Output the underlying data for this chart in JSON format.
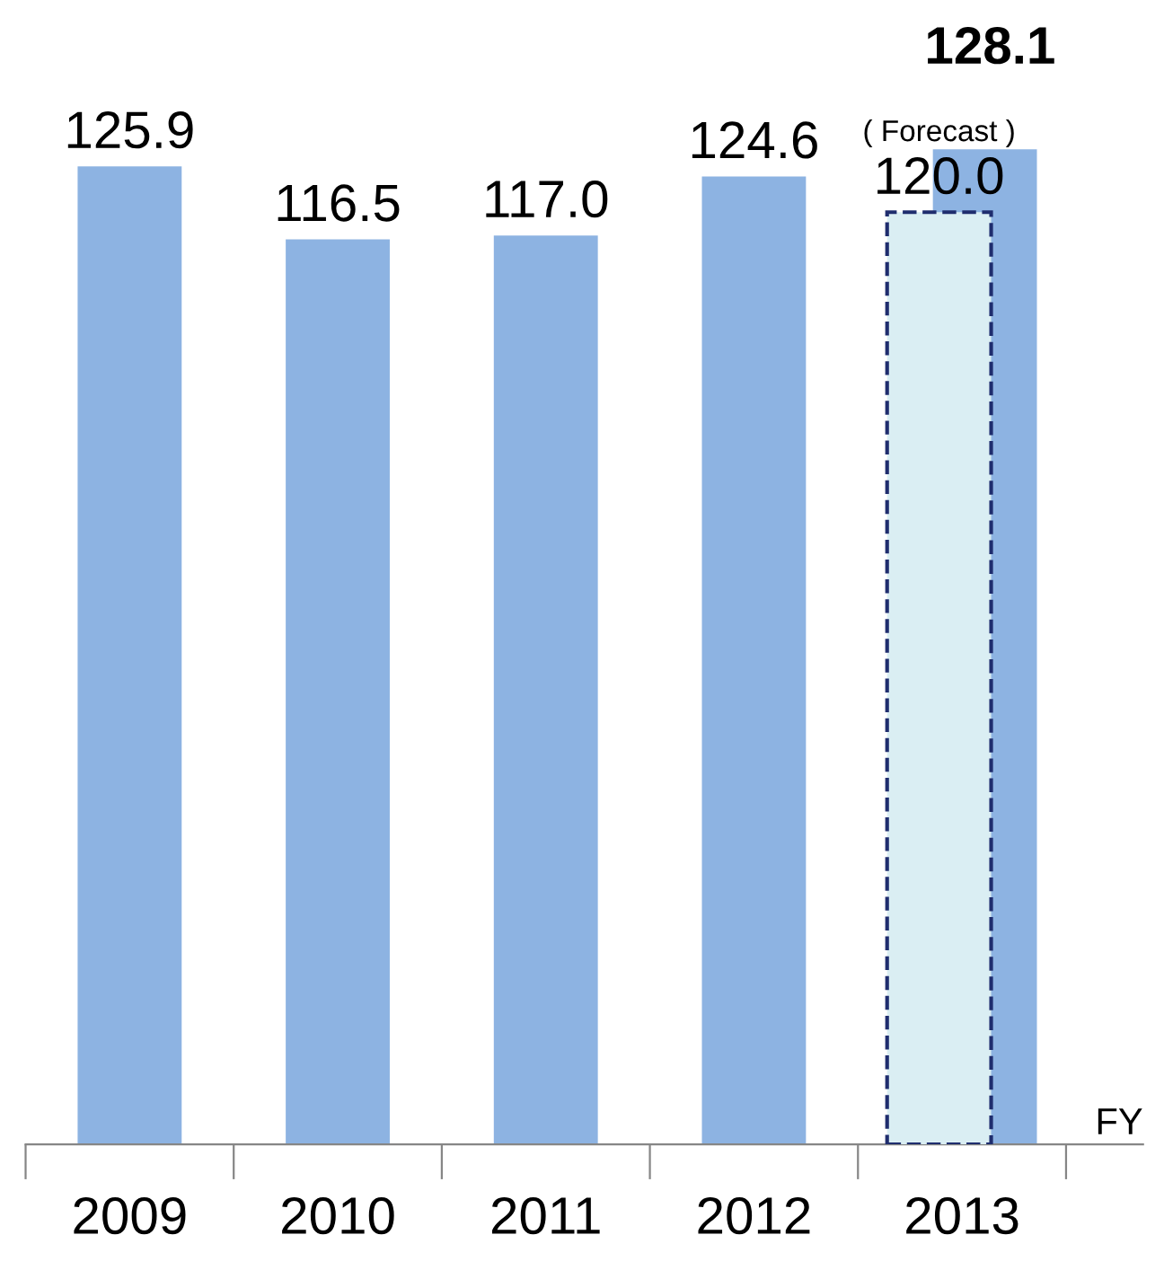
{
  "chart_data": {
    "type": "bar",
    "xlabel": "FY",
    "categories": [
      "2009",
      "2010",
      "2011",
      "2012",
      "2013"
    ],
    "series": [
      {
        "color": "#8db3e2",
        "values": [
          125.9,
          116.5,
          117.0,
          124.6,
          128.1
        ],
        "value_labels": [
          "125.9",
          "116.5",
          "117.0",
          "124.6",
          "128.1"
        ]
      },
      {
        "color": "#daeef3",
        "line_style": "dashed",
        "values": [
          null,
          null,
          null,
          null,
          120.0
        ],
        "value_labels": [
          null,
          null,
          null,
          null,
          "120.0"
        ]
      }
    ],
    "annotations": [
      {
        "text": "( Forecast )",
        "x": "2013",
        "y": 120.0
      }
    ]
  }
}
